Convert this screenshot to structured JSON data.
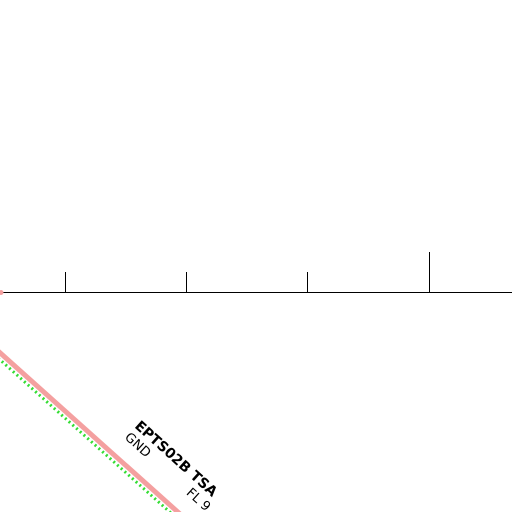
{
  "airspace": {
    "name": "EPTS02B TSA",
    "lower_limit": "GND",
    "upper_limit": "FL 9"
  }
}
